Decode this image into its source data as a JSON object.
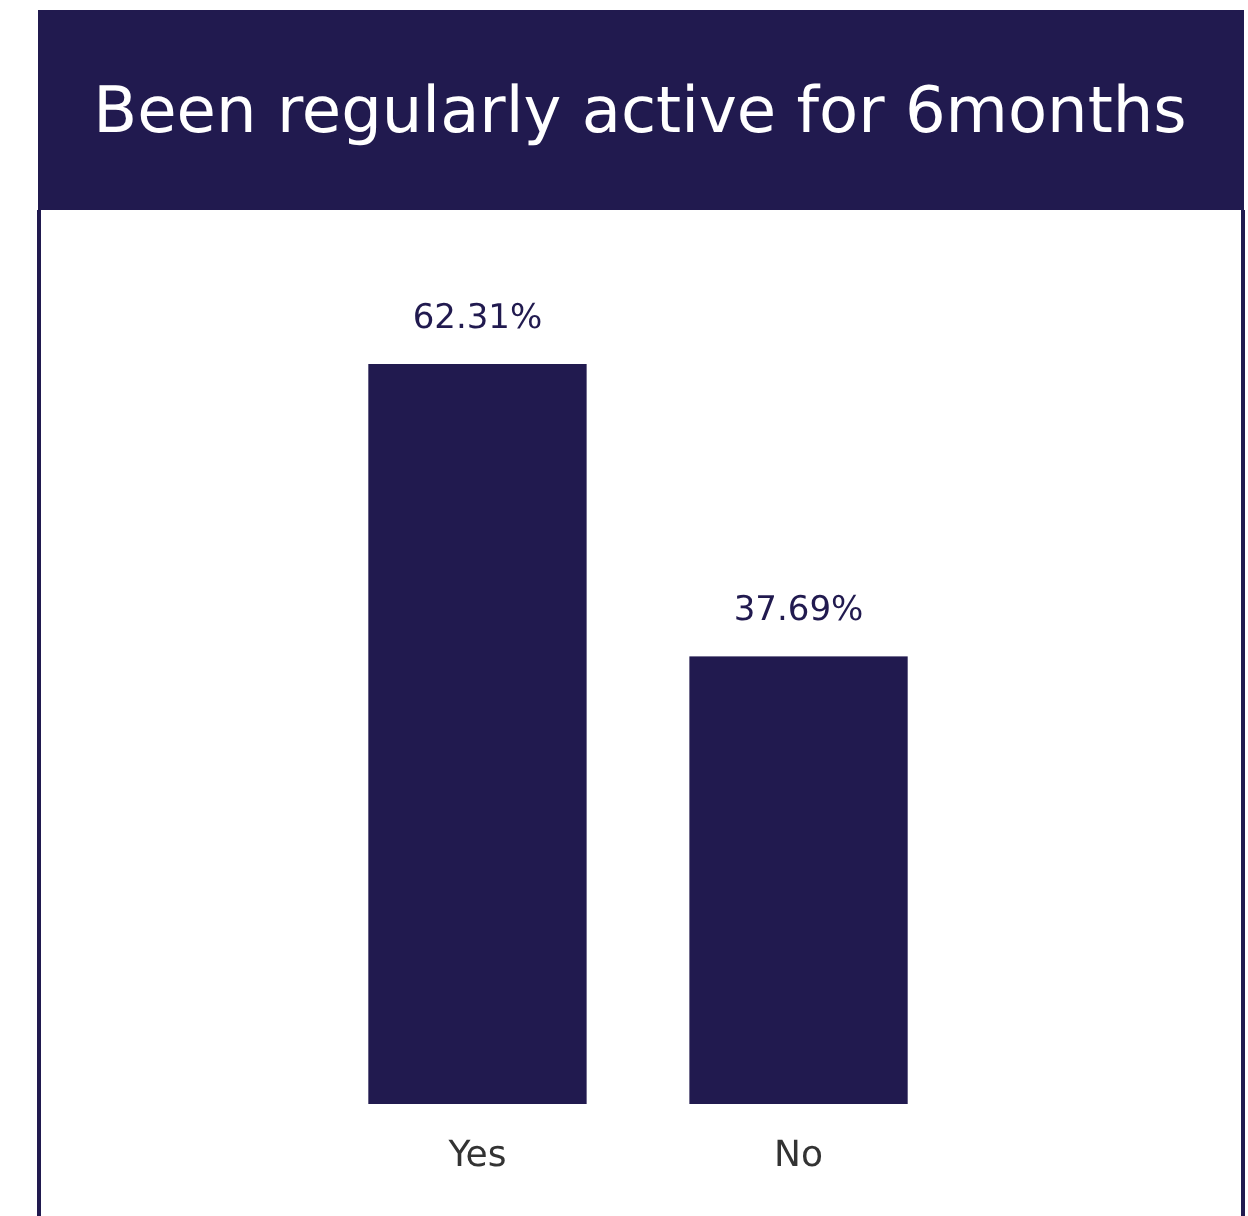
{
  "chart_data": {
    "type": "bar",
    "title": "Been regularly active for 6months",
    "categories": [
      "Yes",
      "No"
    ],
    "values": [
      62.31,
      37.69
    ],
    "value_labels": [
      "62.31%",
      "37.69%"
    ],
    "color": "#211a4f"
  }
}
